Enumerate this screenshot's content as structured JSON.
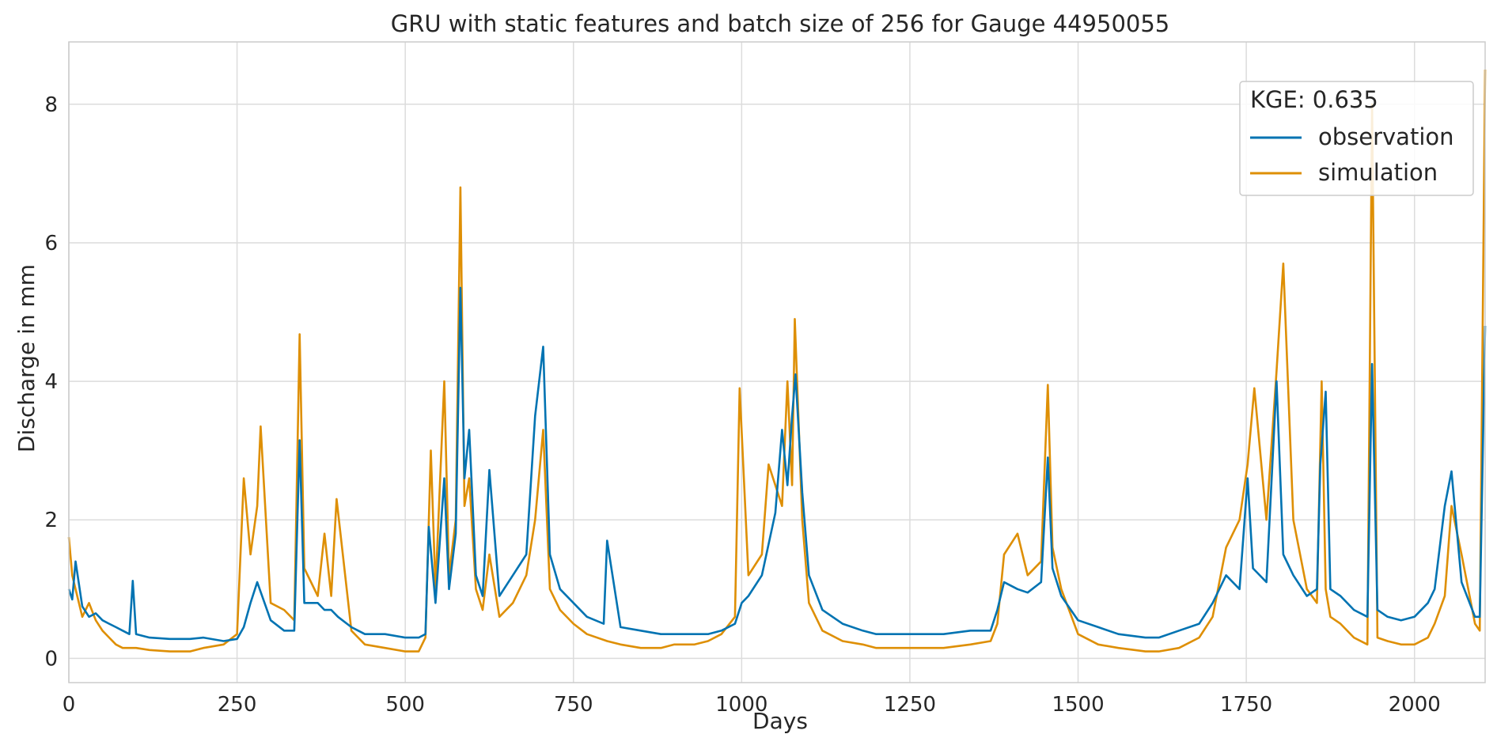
{
  "chart_data": {
    "type": "line",
    "title": "GRU with static features and batch size of 256 for Gauge 44950055",
    "xlabel": "Days",
    "ylabel": "Discharge in mm",
    "xlim": [
      0,
      2105
    ],
    "ylim": [
      -0.35,
      8.9
    ],
    "xticks": [
      0,
      250,
      500,
      750,
      1000,
      1250,
      1500,
      1750,
      2000
    ],
    "yticks": [
      0,
      2,
      4,
      6,
      8
    ],
    "grid": true,
    "legend": {
      "placement": "top-right",
      "title": "KGE: 0.635",
      "entries": [
        "observation",
        "simulation"
      ]
    },
    "colors": {
      "observation": "#0173b2",
      "simulation": "#de8f05",
      "grid": "#dcdcdc",
      "frame": "#cccccc"
    },
    "series": [
      {
        "name": "observation",
        "x": [
          0,
          5,
          10,
          20,
          30,
          40,
          50,
          60,
          70,
          80,
          90,
          95,
          100,
          120,
          150,
          180,
          200,
          230,
          250,
          260,
          270,
          280,
          300,
          320,
          335,
          343,
          350,
          370,
          380,
          390,
          400,
          420,
          430,
          440,
          470,
          500,
          520,
          530,
          535,
          545,
          558,
          565,
          575,
          582,
          588,
          595,
          605,
          615,
          625,
          640,
          660,
          680,
          693,
          705,
          715,
          730,
          750,
          770,
          795,
          800,
          820,
          850,
          880,
          900,
          930,
          950,
          970,
          990,
          1000,
          1010,
          1030,
          1050,
          1060,
          1068,
          1075,
          1080,
          1090,
          1100,
          1120,
          1150,
          1180,
          1200,
          1230,
          1260,
          1300,
          1340,
          1370,
          1380,
          1390,
          1410,
          1425,
          1445,
          1455,
          1462,
          1475,
          1500,
          1530,
          1560,
          1600,
          1620,
          1650,
          1680,
          1700,
          1720,
          1740,
          1752,
          1760,
          1780,
          1795,
          1805,
          1820,
          1840,
          1855,
          1860,
          1868,
          1875,
          1890,
          1910,
          1930,
          1937,
          1945,
          1960,
          1980,
          2000,
          2020,
          2030,
          2045,
          2055,
          2070,
          2090,
          2097,
          2105
        ],
        "y": [
          1.0,
          0.85,
          1.4,
          0.75,
          0.6,
          0.65,
          0.55,
          0.5,
          0.45,
          0.4,
          0.35,
          1.12,
          0.35,
          0.3,
          0.28,
          0.28,
          0.3,
          0.25,
          0.28,
          0.45,
          0.8,
          1.1,
          0.55,
          0.4,
          0.4,
          3.15,
          0.8,
          0.8,
          0.7,
          0.7,
          0.6,
          0.45,
          0.4,
          0.35,
          0.35,
          0.3,
          0.3,
          0.35,
          1.9,
          0.8,
          2.6,
          1.0,
          1.8,
          5.35,
          2.6,
          3.3,
          1.2,
          0.9,
          2.72,
          0.9,
          1.2,
          1.5,
          3.5,
          4.5,
          1.5,
          1.0,
          0.8,
          0.6,
          0.5,
          1.7,
          0.45,
          0.4,
          0.35,
          0.35,
          0.35,
          0.35,
          0.4,
          0.5,
          0.8,
          0.9,
          1.2,
          2.1,
          3.3,
          2.5,
          3.5,
          4.1,
          2.4,
          1.2,
          0.7,
          0.5,
          0.4,
          0.35,
          0.35,
          0.35,
          0.35,
          0.4,
          0.4,
          0.7,
          1.1,
          1.0,
          0.95,
          1.1,
          2.9,
          1.3,
          0.9,
          0.55,
          0.45,
          0.35,
          0.3,
          0.3,
          0.4,
          0.5,
          0.8,
          1.2,
          1.0,
          2.6,
          1.3,
          1.1,
          4.0,
          1.5,
          1.2,
          0.9,
          1.0,
          2.8,
          3.85,
          1.0,
          0.9,
          0.7,
          0.6,
          4.25,
          0.7,
          0.6,
          0.55,
          0.6,
          0.8,
          1.0,
          2.2,
          2.7,
          1.1,
          0.6,
          0.6,
          4.8
        ]
      },
      {
        "name": "simulation",
        "x": [
          0,
          5,
          10,
          20,
          30,
          40,
          50,
          60,
          70,
          80,
          90,
          100,
          120,
          150,
          180,
          200,
          230,
          250,
          260,
          270,
          280,
          285,
          300,
          320,
          335,
          343,
          350,
          370,
          380,
          390,
          398,
          420,
          430,
          440,
          470,
          500,
          520,
          530,
          538,
          545,
          558,
          565,
          575,
          582,
          588,
          595,
          605,
          615,
          625,
          640,
          660,
          680,
          693,
          705,
          715,
          730,
          750,
          770,
          800,
          820,
          850,
          880,
          900,
          930,
          950,
          970,
          990,
          997,
          1010,
          1030,
          1040,
          1060,
          1068,
          1075,
          1079,
          1090,
          1100,
          1120,
          1150,
          1180,
          1200,
          1230,
          1260,
          1300,
          1340,
          1370,
          1380,
          1390,
          1410,
          1425,
          1445,
          1455,
          1462,
          1475,
          1500,
          1530,
          1560,
          1600,
          1620,
          1650,
          1680,
          1700,
          1720,
          1740,
          1752,
          1762,
          1780,
          1795,
          1805,
          1820,
          1840,
          1855,
          1862,
          1868,
          1875,
          1890,
          1910,
          1930,
          1937,
          1945,
          1960,
          1980,
          2000,
          2020,
          2030,
          2045,
          2055,
          2070,
          2090,
          2097,
          2105
        ],
        "y": [
          1.75,
          1.2,
          1.0,
          0.6,
          0.8,
          0.55,
          0.4,
          0.3,
          0.2,
          0.15,
          0.15,
          0.15,
          0.12,
          0.1,
          0.1,
          0.15,
          0.2,
          0.35,
          2.6,
          1.5,
          2.2,
          3.35,
          0.8,
          0.7,
          0.55,
          4.68,
          1.3,
          0.9,
          1.8,
          0.9,
          2.3,
          0.4,
          0.3,
          0.2,
          0.15,
          0.1,
          0.1,
          0.3,
          3.0,
          1.0,
          4.0,
          1.2,
          2.0,
          6.8,
          2.2,
          2.6,
          1.0,
          0.7,
          1.5,
          0.6,
          0.8,
          1.2,
          2.0,
          3.3,
          1.0,
          0.7,
          0.5,
          0.35,
          0.25,
          0.2,
          0.15,
          0.15,
          0.2,
          0.2,
          0.25,
          0.35,
          0.6,
          3.9,
          1.2,
          1.5,
          2.8,
          2.2,
          4.0,
          2.5,
          4.9,
          2.0,
          0.8,
          0.4,
          0.25,
          0.2,
          0.15,
          0.15,
          0.15,
          0.15,
          0.2,
          0.25,
          0.5,
          1.5,
          1.8,
          1.2,
          1.4,
          3.95,
          1.6,
          1.0,
          0.35,
          0.2,
          0.15,
          0.1,
          0.1,
          0.15,
          0.3,
          0.6,
          1.6,
          2.0,
          2.8,
          3.9,
          2.0,
          4.15,
          5.7,
          2.0,
          1.0,
          0.8,
          4.0,
          1.0,
          0.6,
          0.5,
          0.3,
          0.2,
          8.0,
          0.3,
          0.25,
          0.2,
          0.2,
          0.3,
          0.5,
          0.9,
          2.2,
          1.5,
          0.5,
          0.4,
          8.5
        ]
      }
    ]
  }
}
